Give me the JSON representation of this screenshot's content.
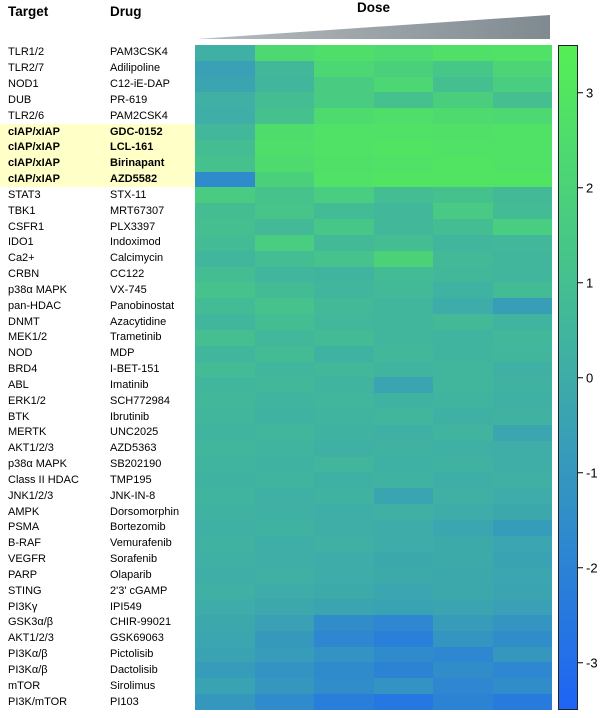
{
  "header": {
    "target": "Target",
    "drug": "Drug",
    "dose": "Dose"
  },
  "colorbar": {
    "min": -3.5,
    "max": 3.5,
    "ticks": [
      3,
      2,
      1,
      0,
      -1,
      -2,
      -3
    ],
    "gradient": [
      {
        "value": 3.5,
        "color": "#55ef55"
      },
      {
        "value": 0,
        "color": "#3eaca8"
      },
      {
        "value": -3.5,
        "color": "#1e64f5"
      }
    ]
  },
  "highlight_color": "#ffffc8",
  "chart_data": {
    "type": "heatmap",
    "x_axis": {
      "label": "Dose",
      "n_doses": 6,
      "direction": "increasing left to right"
    },
    "row_headers": [
      "Target",
      "Drug"
    ],
    "value_range": [
      -3.5,
      3.5
    ],
    "colorbar_ticks": [
      3,
      2,
      1,
      0,
      -1,
      -2,
      -3
    ],
    "rows": [
      {
        "target": "TLR1/2",
        "drug": "PAM3CSK4",
        "highlighted": false,
        "values": [
          0.2,
          2.3,
          2.6,
          2.4,
          2.7,
          2.8
        ]
      },
      {
        "target": "TLR2/7",
        "drug": "Adilipoline",
        "highlighted": false,
        "values": [
          -0.6,
          0.6,
          2.2,
          1.9,
          1.4,
          2.1
        ]
      },
      {
        "target": "NOD1",
        "drug": "C12-iE-DAP",
        "highlighted": false,
        "values": [
          -0.4,
          0.5,
          1.6,
          2.2,
          1.0,
          1.7
        ]
      },
      {
        "target": "DUB",
        "drug": "PR-619",
        "highlighted": false,
        "values": [
          0.2,
          0.9,
          1.6,
          1.1,
          1.8,
          1.0
        ]
      },
      {
        "target": "TLR2/6",
        "drug": "PAM2CSK4",
        "highlighted": false,
        "values": [
          0.1,
          1.1,
          2.4,
          2.6,
          2.4,
          2.3
        ]
      },
      {
        "target": "cIAP/xIAP",
        "drug": "GDC-0152",
        "highlighted": true,
        "values": [
          0.6,
          2.5,
          2.8,
          2.8,
          2.7,
          2.8
        ]
      },
      {
        "target": "cIAP/xIAP",
        "drug": "LCL-161",
        "highlighted": true,
        "values": [
          0.9,
          2.6,
          2.8,
          2.9,
          2.8,
          2.8
        ]
      },
      {
        "target": "cIAP/xIAP",
        "drug": "Birinapant",
        "highlighted": true,
        "values": [
          1.1,
          2.4,
          2.7,
          2.8,
          2.9,
          2.8
        ]
      },
      {
        "target": "cIAP/xIAP",
        "drug": "AZD5582",
        "highlighted": true,
        "values": [
          -1.6,
          1.9,
          2.8,
          2.9,
          2.9,
          2.9
        ]
      },
      {
        "target": "STAT3",
        "drug": "STX-11",
        "highlighted": false,
        "values": [
          1.6,
          1.2,
          1.7,
          0.9,
          1.1,
          0.7
        ]
      },
      {
        "target": "TBK1",
        "drug": "MRT67307",
        "highlighted": false,
        "values": [
          0.9,
          1.3,
          0.8,
          0.6,
          1.5,
          0.8
        ]
      },
      {
        "target": "CSFR1",
        "drug": "PLX3397",
        "highlighted": false,
        "values": [
          1.0,
          0.7,
          1.4,
          0.6,
          0.9,
          1.7
        ]
      },
      {
        "target": "IDO1",
        "drug": "Indoximod",
        "highlighted": false,
        "values": [
          0.8,
          1.7,
          0.7,
          0.9,
          0.5,
          0.6
        ]
      },
      {
        "target": "Ca2+",
        "drug": "Calcimycin",
        "highlighted": false,
        "values": [
          0.5,
          0.9,
          1.2,
          2.0,
          0.7,
          0.5
        ]
      },
      {
        "target": "CRBN",
        "drug": "CC122",
        "highlighted": false,
        "values": [
          0.9,
          0.5,
          0.4,
          0.8,
          0.6,
          0.5
        ]
      },
      {
        "target": "p38α MAPK",
        "drug": "VX-745",
        "highlighted": false,
        "values": [
          1.2,
          0.8,
          0.5,
          0.7,
          0.3,
          0.8
        ]
      },
      {
        "target": "pan-HDAC",
        "drug": "Panobinostat",
        "highlighted": false,
        "values": [
          0.8,
          1.2,
          0.7,
          0.5,
          0.0,
          -0.7
        ]
      },
      {
        "target": "DNMT",
        "drug": "Azacytidine",
        "highlighted": false,
        "values": [
          0.5,
          0.9,
          0.6,
          0.5,
          0.7,
          0.4
        ]
      },
      {
        "target": "MEK1/2",
        "drug": "Trametinib",
        "highlighted": false,
        "values": [
          1.0,
          0.6,
          0.8,
          0.5,
          0.4,
          0.6
        ]
      },
      {
        "target": "NOD",
        "drug": "MDP",
        "highlighted": false,
        "values": [
          0.5,
          0.8,
          0.3,
          0.6,
          0.4,
          0.5
        ]
      },
      {
        "target": "BRD4",
        "drug": "I-BET-151",
        "highlighted": false,
        "values": [
          0.8,
          0.5,
          0.6,
          0.4,
          0.5,
          0.2
        ]
      },
      {
        "target": "ABL",
        "drug": "Imatinib",
        "highlighted": false,
        "values": [
          0.5,
          0.6,
          0.4,
          -0.4,
          0.5,
          0.3
        ]
      },
      {
        "target": "ERK1/2",
        "drug": "SCH772984",
        "highlighted": false,
        "values": [
          0.6,
          0.4,
          0.5,
          0.3,
          0.4,
          0.2
        ]
      },
      {
        "target": "BTK",
        "drug": "Ibrutinib",
        "highlighted": false,
        "values": [
          0.5,
          0.3,
          0.4,
          0.5,
          0.2,
          0.3
        ]
      },
      {
        "target": "MERTK",
        "drug": "UNC2025",
        "highlighted": false,
        "values": [
          0.4,
          0.5,
          0.3,
          0.2,
          0.4,
          -0.3
        ]
      },
      {
        "target": "AKT1/2/3",
        "drug": "AZD5363",
        "highlighted": false,
        "values": [
          0.5,
          0.4,
          0.2,
          0.3,
          0.2,
          0.1
        ]
      },
      {
        "target": "p38α MAPK",
        "drug": "SB202190",
        "highlighted": false,
        "values": [
          0.4,
          0.3,
          0.5,
          0.2,
          0.3,
          0.1
        ]
      },
      {
        "target": "Class II HDAC",
        "drug": "TMP195",
        "highlighted": false,
        "values": [
          0.3,
          0.4,
          0.2,
          0.3,
          0.1,
          0.2
        ]
      },
      {
        "target": "JNK1/2/3",
        "drug": "JNK-IN-8",
        "highlighted": false,
        "values": [
          0.4,
          0.2,
          0.3,
          -0.4,
          0.2,
          0.0
        ]
      },
      {
        "target": "AMPK",
        "drug": "Dorsomorphin",
        "highlighted": false,
        "values": [
          0.3,
          0.2,
          0.1,
          0.2,
          0.0,
          -0.2
        ]
      },
      {
        "target": "PSMA",
        "drug": "Bortezomib",
        "highlighted": false,
        "values": [
          0.2,
          0.3,
          0.1,
          0.0,
          -0.3,
          -0.8
        ]
      },
      {
        "target": "B-RAF",
        "drug": "Vemurafenib",
        "highlighted": false,
        "values": [
          0.3,
          0.1,
          0.2,
          0.0,
          -0.1,
          -0.3
        ]
      },
      {
        "target": "VEGFR",
        "drug": "Sorafenib",
        "highlighted": false,
        "values": [
          0.2,
          0.1,
          0.0,
          -0.2,
          -0.1,
          -0.5
        ]
      },
      {
        "target": "PARP",
        "drug": "Olaparib",
        "highlighted": false,
        "values": [
          0.1,
          0.2,
          0.0,
          -0.1,
          -0.2,
          -0.3
        ]
      },
      {
        "target": "STING",
        "drug": "2'3' cGAMP",
        "highlighted": false,
        "values": [
          0.2,
          0.0,
          -0.1,
          -0.3,
          -0.2,
          -0.4
        ]
      },
      {
        "target": "PI3Kγ",
        "drug": "IPI549",
        "highlighted": false,
        "values": [
          0.0,
          -0.2,
          -0.4,
          -0.5,
          -0.4,
          -0.6
        ]
      },
      {
        "target": "GSK3α/β",
        "drug": "CHIR-99021",
        "highlighted": false,
        "values": [
          -0.2,
          -0.6,
          -1.5,
          -1.8,
          -0.8,
          -1.1
        ]
      },
      {
        "target": "AKT1/2/3",
        "drug": "GSK69063",
        "highlighted": false,
        "values": [
          -0.3,
          -0.9,
          -1.8,
          -2.2,
          -1.1,
          -1.5
        ]
      },
      {
        "target": "PI3Kα/β",
        "drug": "Pictolisib",
        "highlighted": false,
        "values": [
          -0.5,
          -0.8,
          -1.2,
          -1.6,
          -1.8,
          -1.0
        ]
      },
      {
        "target": "PI3Kα/β",
        "drug": "Dactolisib",
        "highlighted": false,
        "values": [
          -0.8,
          -1.2,
          -1.6,
          -2.0,
          -1.5,
          -1.8
        ]
      },
      {
        "target": "mTOR",
        "drug": "Sirolimus",
        "highlighted": false,
        "values": [
          -0.5,
          -1.0,
          -1.5,
          -1.2,
          -1.8,
          -1.5
        ]
      },
      {
        "target": "PI3K/mTOR",
        "drug": "PI103",
        "highlighted": false,
        "values": [
          -1.0,
          -1.6,
          -2.3,
          -2.6,
          -2.0,
          -2.4
        ]
      }
    ]
  }
}
